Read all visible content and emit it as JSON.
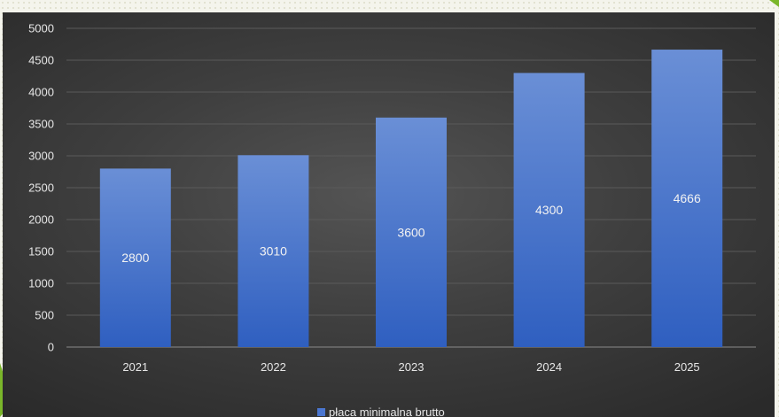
{
  "chart_data": {
    "type": "bar",
    "title": "",
    "xlabel": "",
    "ylabel": "",
    "categories": [
      "2021",
      "2022",
      "2023",
      "2024",
      "2025"
    ],
    "series": [
      {
        "name": "płaca minimalna brutto",
        "values": [
          2800,
          3010,
          3600,
          4300,
          4666
        ]
      }
    ],
    "ylim": [
      0,
      5000
    ],
    "yticks": [
      0,
      500,
      1000,
      1500,
      2000,
      2500,
      3000,
      3500,
      4000,
      4500,
      5000
    ],
    "data_labels": [
      "2800",
      "3010",
      "3600",
      "4300",
      "4666"
    ],
    "grid": true,
    "legend_position": "bottom",
    "colors": {
      "bar_top": "#6a8fd6",
      "bar_bottom": "#2f5fc0",
      "legend_swatch": "#4a76d0",
      "background": "#3d3d3d",
      "gridline": "#5a5a5a",
      "accent_arrow": "#8dc63f"
    }
  }
}
